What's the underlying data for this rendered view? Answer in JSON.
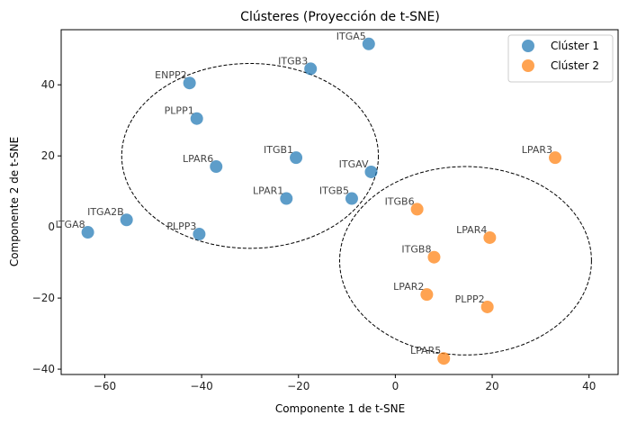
{
  "chart_data": {
    "type": "scatter",
    "title": "Clústeres (Proyección de t-SNE)",
    "xlabel": "Componente 1 de t-SNE",
    "ylabel": "Componente 2 de t-SNE",
    "xlim": [
      -69,
      46
    ],
    "ylim": [
      -41.5,
      55.5
    ],
    "xticks": [
      -60,
      -40,
      -20,
      0,
      20,
      40
    ],
    "yticks": [
      -40,
      -20,
      0,
      20,
      40
    ],
    "grid": false,
    "legend_position": "top-right",
    "series": [
      {
        "name": "Clúster 1",
        "color": "#1f77b4",
        "points": [
          {
            "label": "ITGA5",
            "x": -5.5,
            "y": 51.5
          },
          {
            "label": "ITGB3",
            "x": -17.5,
            "y": 44.5
          },
          {
            "label": "ENPP2",
            "x": -42.5,
            "y": 40.5
          },
          {
            "label": "PLPP1",
            "x": -41,
            "y": 30.5
          },
          {
            "label": "ITGB1",
            "x": -20.5,
            "y": 19.5
          },
          {
            "label": "LPAR6",
            "x": -37,
            "y": 17
          },
          {
            "label": "ITGAV",
            "x": -5,
            "y": 15.5
          },
          {
            "label": "LPAR1",
            "x": -22.5,
            "y": 8
          },
          {
            "label": "ITGB5",
            "x": -9,
            "y": 8
          },
          {
            "label": "ITGA2B",
            "x": -55.5,
            "y": 2
          },
          {
            "label": "ITGA8",
            "x": -63.5,
            "y": -1.5
          },
          {
            "label": "PLPP3",
            "x": -40.5,
            "y": -2
          }
        ]
      },
      {
        "name": "Clúster 2",
        "color": "#ff7f0e",
        "points": [
          {
            "label": "LPAR3",
            "x": 33,
            "y": 19.5
          },
          {
            "label": "ITGB6",
            "x": 4.5,
            "y": 5
          },
          {
            "label": "LPAR4",
            "x": 19.5,
            "y": -3
          },
          {
            "label": "ITGB8",
            "x": 8,
            "y": -8.5
          },
          {
            "label": "LPAR2",
            "x": 6.5,
            "y": -19
          },
          {
            "label": "PLPP2",
            "x": 19,
            "y": -22.5
          },
          {
            "label": "LPAR5",
            "x": 10,
            "y": -37
          }
        ]
      }
    ],
    "cluster_ellipses": [
      {
        "cluster": "Clúster 1",
        "cx": -30,
        "cy": 20,
        "rx": 26.5,
        "ry": 26
      },
      {
        "cluster": "Clúster 2",
        "cx": 14.5,
        "cy": -9.5,
        "rx": 26,
        "ry": 26.5
      }
    ]
  }
}
